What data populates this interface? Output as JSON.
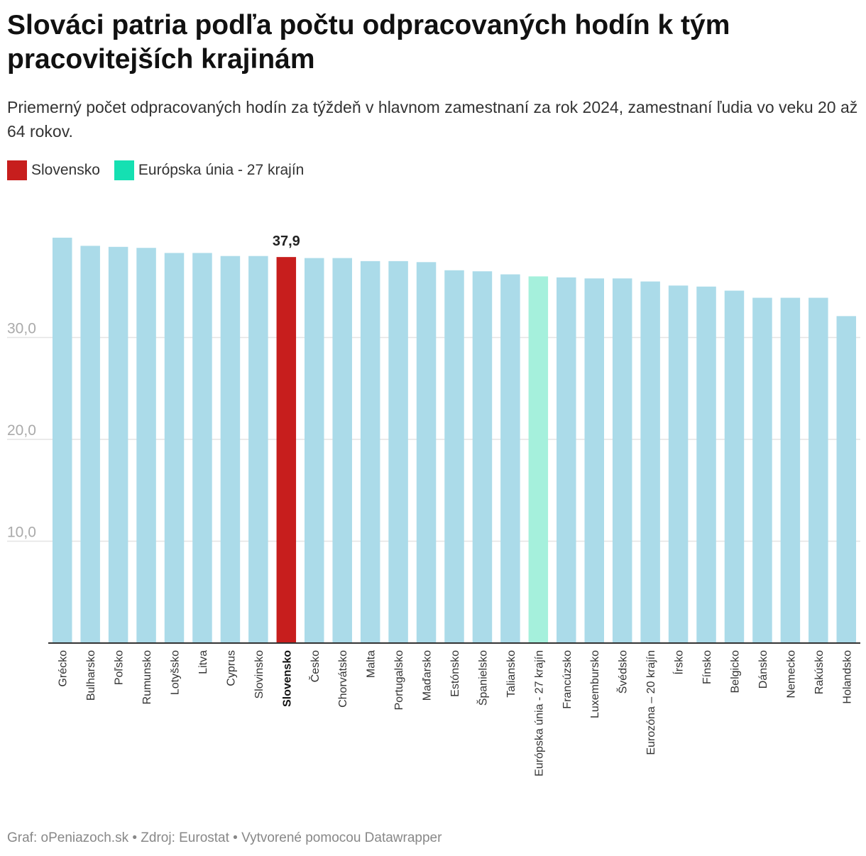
{
  "title": "Slováci patria podľa počtu odpracovaných hodín k tým pracovitejších krajinám",
  "subtitle": "Priemerný počet odpracovaných hodín za týždeň v hlavnom zamestnaní za rok 2024, zamestnaní ľudia vo veku 20 až 64 rokov.",
  "legend": [
    {
      "label": "Slovensko",
      "color": "#c71e1d"
    },
    {
      "label": "Európska únia - 27 krajín",
      "color": "#15e0b2"
    }
  ],
  "footer": "Graf: oPeniazoch.sk • Zdroj: Eurostat • Vytvorené pomocou Datawrapper",
  "colors": {
    "default_bar": "#abdbe9",
    "highlight_bar": "#c71e1d",
    "eu_bar": "#a5f0dc",
    "grid": "#e4e4e4",
    "axis": "#333333"
  },
  "chart_data": {
    "type": "bar",
    "title": "Slováci patria podľa počtu odpracovaných hodín k tým pracovitejších krajinám",
    "xlabel": "",
    "ylabel": "",
    "ylim": [
      0,
      40
    ],
    "grid": true,
    "yticks": [
      10,
      20,
      30
    ],
    "ytick_labels": [
      "10,0",
      "20,0",
      "30,0"
    ],
    "categories": [
      "Grécko",
      "Bulharsko",
      "Poľsko",
      "Rumunsko",
      "Lotyšsko",
      "Litva",
      "Cyprus",
      "Slovinsko",
      "Slovensko",
      "Česko",
      "Chorvátsko",
      "Malta",
      "Portugalsko",
      "Maďarsko",
      "Estónsko",
      "Španielsko",
      "Taliansko",
      "Európska únia - 27 krajín",
      "Francúzsko",
      "Luxembursko",
      "Švédsko",
      "Eurozóna – 20 krajín",
      "Írsko",
      "Fínsko",
      "Belgicko",
      "Dánsko",
      "Nemecko",
      "Rakúsko",
      "Holandsko"
    ],
    "values": [
      39.8,
      39.0,
      38.9,
      38.8,
      38.3,
      38.3,
      38.0,
      38.0,
      37.9,
      37.8,
      37.8,
      37.5,
      37.5,
      37.4,
      36.6,
      36.5,
      36.2,
      36.0,
      35.9,
      35.8,
      35.8,
      35.5,
      35.1,
      35.0,
      34.6,
      33.9,
      33.9,
      33.9,
      32.1
    ],
    "highlight": {
      "category": "Slovensko",
      "label": "37,9"
    },
    "eu_category": "Európska únia - 27 krajín"
  }
}
